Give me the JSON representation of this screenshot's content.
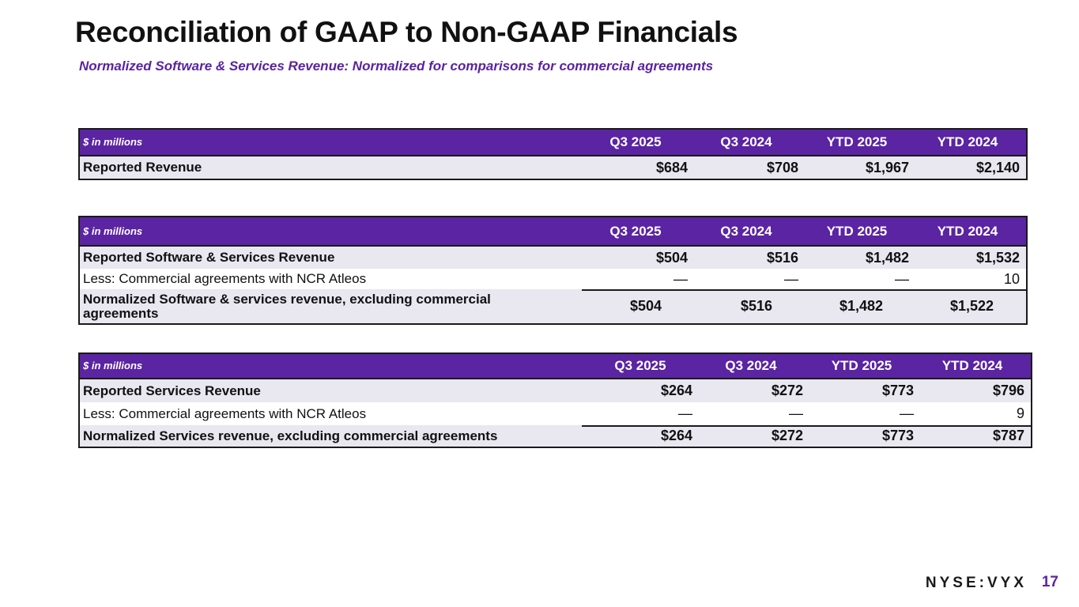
{
  "title": "Reconciliation of GAAP to Non-GAAP Financials",
  "subtitle": "Normalized Software & Services Revenue: Normalized for comparisons for commercial agreements",
  "tables": [
    {
      "unit_label": "$ in millions",
      "columns": [
        "Q3 2025",
        "Q3 2024",
        "YTD 2025",
        "YTD 2024"
      ],
      "rows": [
        {
          "label": "Reported Revenue",
          "values": [
            "$684",
            "$708",
            "$1,967",
            "$2,140"
          ]
        }
      ]
    },
    {
      "unit_label": "$ in millions",
      "columns": [
        "Q3 2025",
        "Q3 2024",
        "YTD 2025",
        "YTD 2024"
      ],
      "rows": [
        {
          "label": "Reported Software & Services Revenue",
          "values": [
            "$504",
            "$516",
            "$1,482",
            "$1,532"
          ]
        },
        {
          "label": "Less: Commercial agreements with NCR Atleos",
          "values": [
            "—",
            "—",
            "—",
            "10"
          ]
        },
        {
          "label": "Normalized Software & services revenue, excluding commercial agreements",
          "values": [
            "$504",
            "$516",
            "$1,482",
            "$1,522"
          ]
        }
      ]
    },
    {
      "unit_label": "$ in millions",
      "columns": [
        "Q3 2025",
        "Q3 2024",
        "YTD 2025",
        "YTD 2024"
      ],
      "rows": [
        {
          "label": "Reported Services Revenue",
          "values": [
            "$264",
            "$272",
            "$773",
            "$796"
          ]
        },
        {
          "label": "Less: Commercial agreements with NCR Atleos",
          "values": [
            "—",
            "—",
            "—",
            "9"
          ]
        },
        {
          "label": "Normalized Services revenue, excluding commercial agreements",
          "values": [
            "$264",
            "$272",
            "$773",
            "$787"
          ]
        }
      ]
    }
  ],
  "footer": {
    "ticker": "NYSE:VYX",
    "page_number": "17"
  }
}
